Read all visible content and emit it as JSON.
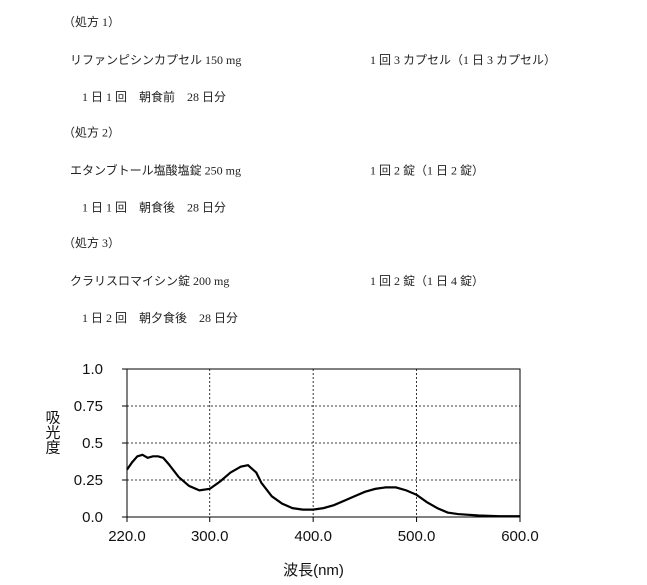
{
  "prescriptions": [
    {
      "heading": "（処方 1）",
      "drug": "リファンピシンカプセル 150 mg",
      "dose": "1 回 3 カプセル（1 日 3 カプセル）",
      "timing": "1 日 1 回　朝食前　28 日分"
    },
    {
      "heading": "（処方 2）",
      "drug": "エタンブトール塩酸塩錠 250 mg",
      "dose": "1 回 2 錠（1 日 2 錠）",
      "timing": "1 日 1 回　朝食後　28 日分"
    },
    {
      "heading": "（処方 3）",
      "drug": "クラリスロマイシン錠 200 mg",
      "dose": "1 回 2 錠（1 日 4 錠）",
      "timing": "1 日 2 回　朝夕食後　28 日分"
    }
  ],
  "chart_data": {
    "type": "line",
    "x_label": "波長(nm)",
    "y_label": "吸光度",
    "x": [
      220,
      225,
      230,
      235,
      240,
      245,
      250,
      255,
      260,
      270,
      280,
      290,
      300,
      310,
      320,
      330,
      337,
      345,
      350,
      360,
      370,
      380,
      390,
      400,
      410,
      420,
      430,
      440,
      450,
      460,
      470,
      480,
      490,
      500,
      510,
      520,
      530,
      540,
      560,
      580,
      600
    ],
    "values": [
      0.32,
      0.37,
      0.41,
      0.42,
      0.4,
      0.41,
      0.41,
      0.4,
      0.36,
      0.27,
      0.21,
      0.18,
      0.19,
      0.24,
      0.3,
      0.34,
      0.35,
      0.3,
      0.23,
      0.14,
      0.09,
      0.06,
      0.05,
      0.05,
      0.06,
      0.08,
      0.11,
      0.14,
      0.17,
      0.19,
      0.2,
      0.2,
      0.18,
      0.15,
      0.1,
      0.06,
      0.03,
      0.02,
      0.01,
      0.005,
      0.005
    ],
    "color": "#000000",
    "xlim": [
      220,
      600
    ],
    "ylim": [
      0,
      1
    ],
    "xticks": [
      {
        "value": 220,
        "label": "220.0"
      },
      {
        "value": 300,
        "label": "300.0"
      },
      {
        "value": 400,
        "label": "400.0"
      },
      {
        "value": 500,
        "label": "500.0"
      },
      {
        "value": 600,
        "label": "600.0"
      }
    ],
    "yticks": [
      {
        "value": 0,
        "label": "0.0"
      },
      0.25,
      0.5,
      0.75,
      {
        "value": 1,
        "label": "1.0"
      }
    ],
    "grid": true
  }
}
